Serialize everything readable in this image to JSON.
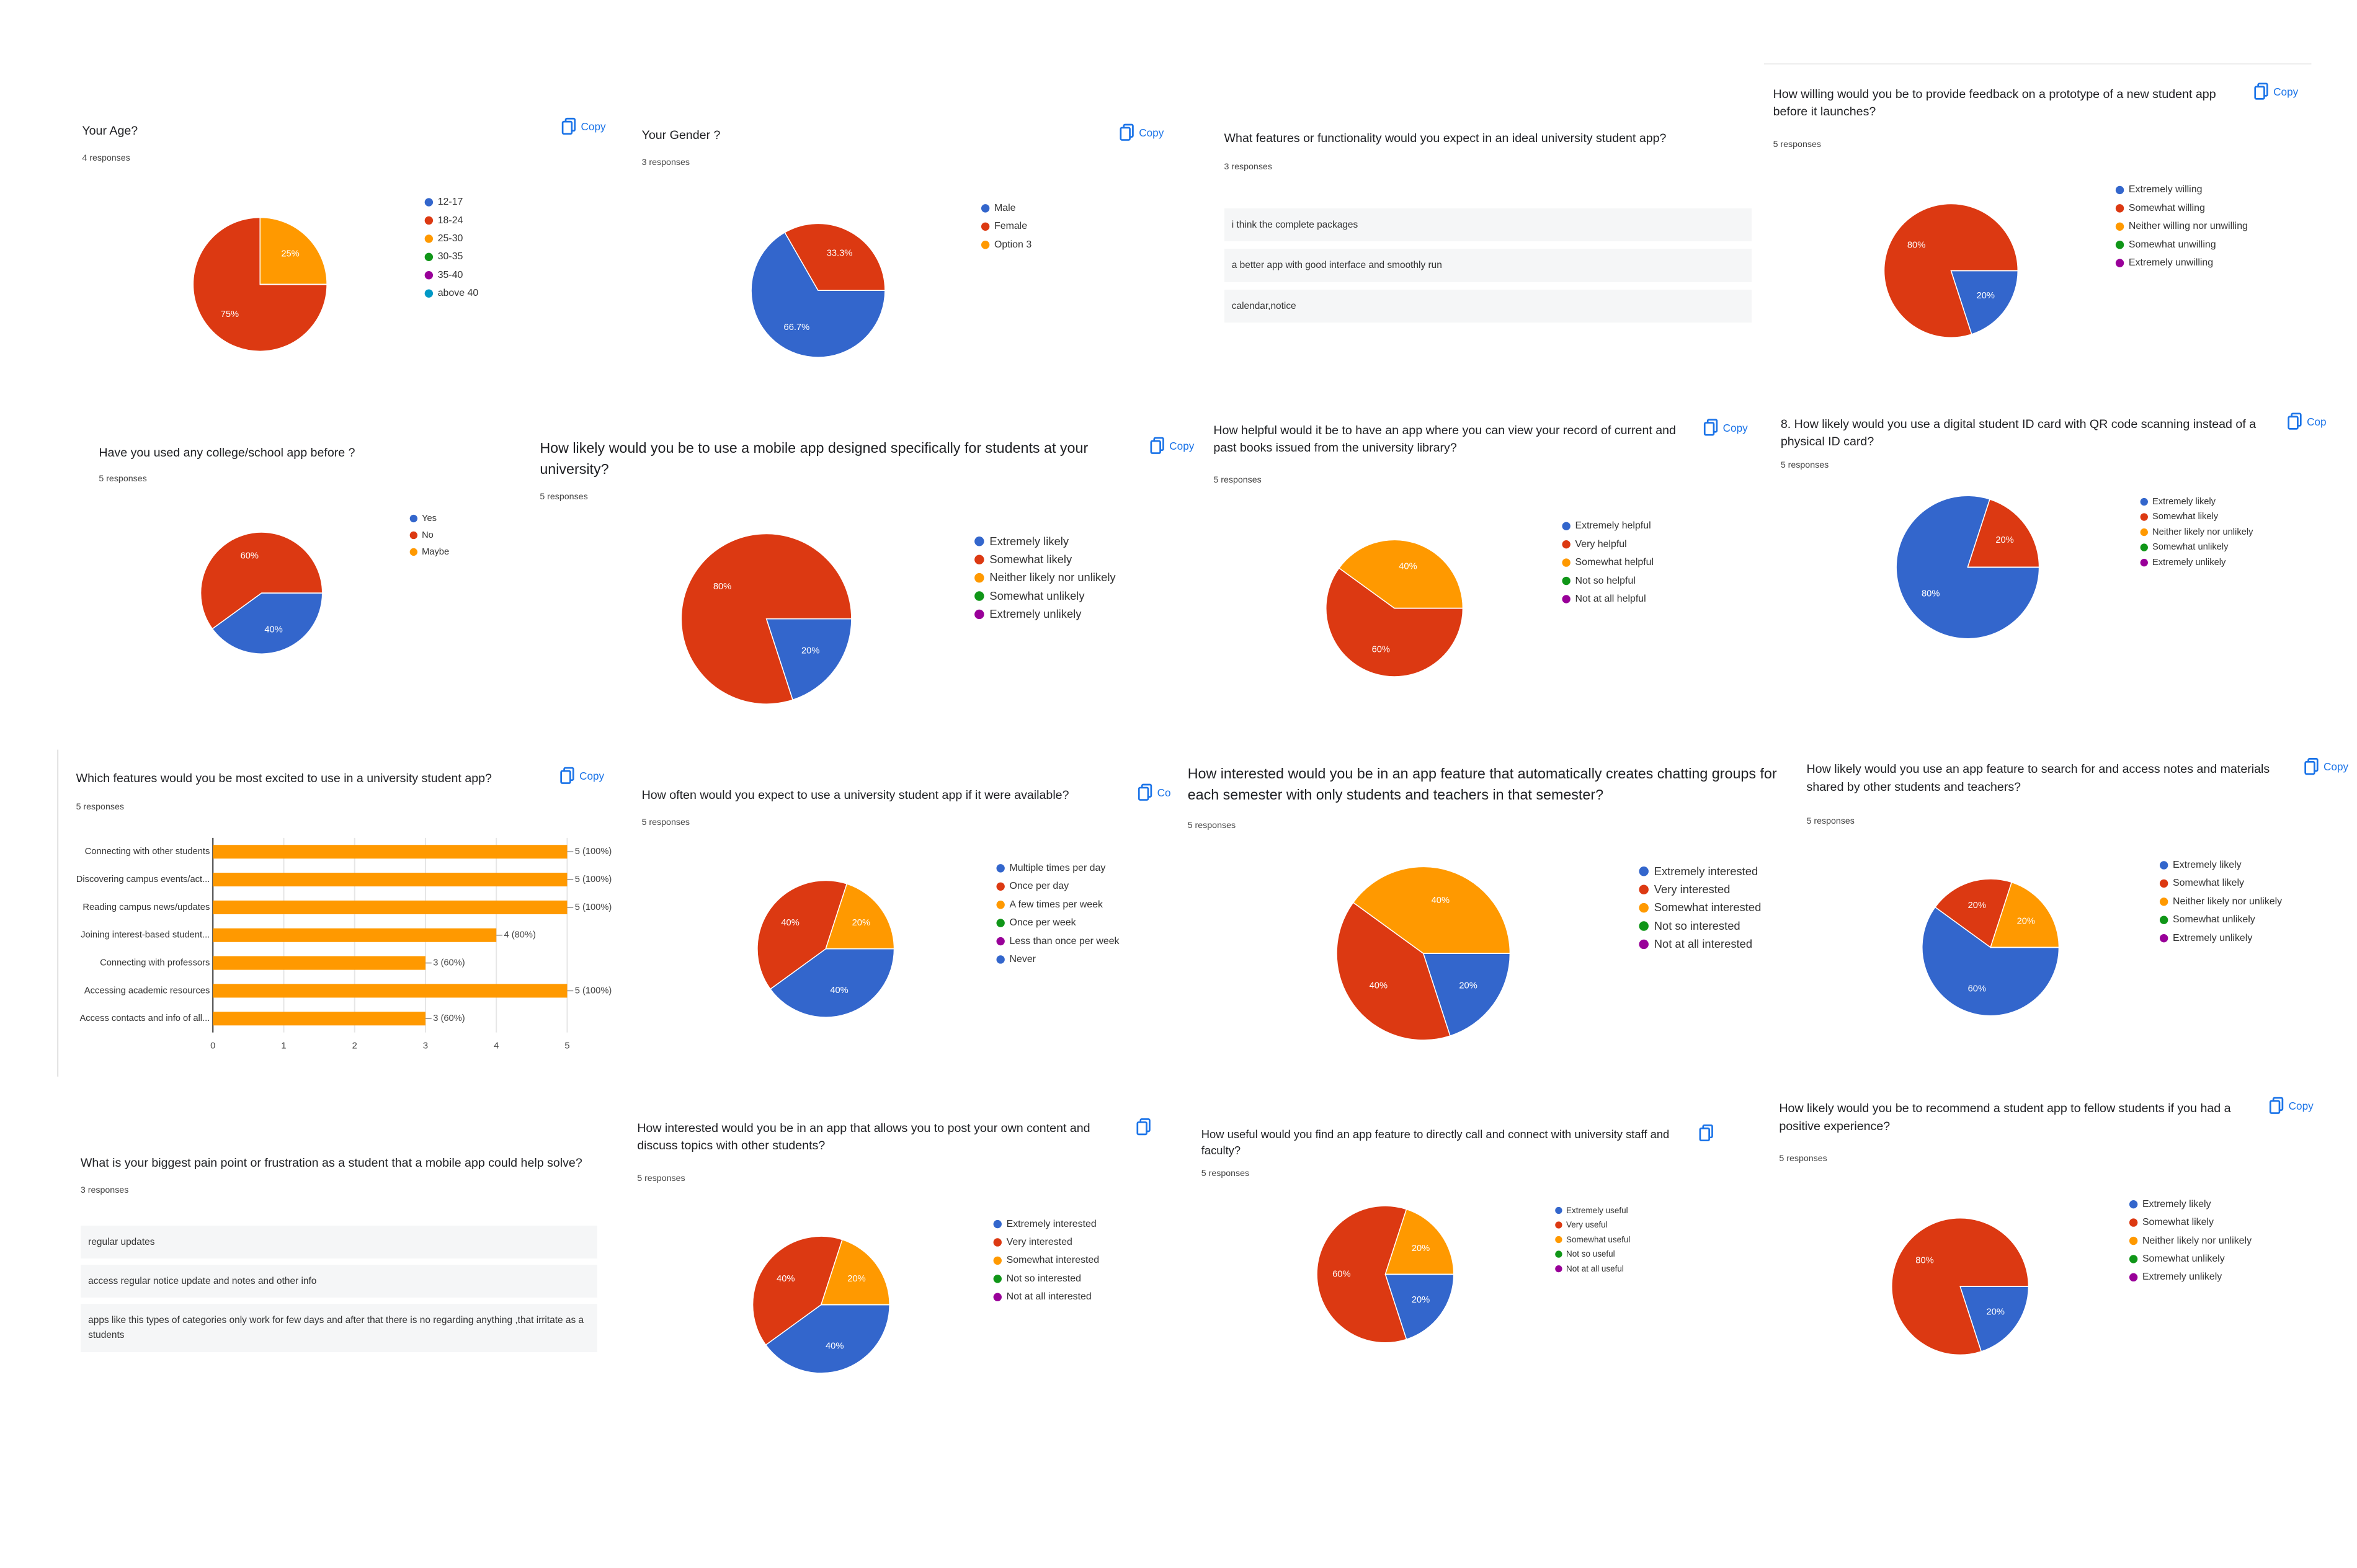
{
  "chart_data": [
    {
      "type": "pie",
      "title": "Your Age?",
      "subtitle": "4 responses",
      "copy": "Copy",
      "categories": [
        "12-17",
        "18-24",
        "25-30",
        "30-35",
        "35-40",
        "above 40"
      ],
      "colors": [
        "#3366cc",
        "#dc3912",
        "#ff9900",
        "#109618",
        "#990099",
        "#0099c6"
      ],
      "values": [
        0,
        75,
        25,
        0,
        0,
        0
      ],
      "value_labels": [
        null,
        "75%",
        "25%",
        null,
        null,
        null
      ]
    },
    {
      "type": "pie",
      "title": "Your Gender ?",
      "subtitle": "3 responses",
      "copy": "Copy",
      "categories": [
        "Male",
        "Female",
        "Option 3"
      ],
      "colors": [
        "#3366cc",
        "#dc3912",
        "#ff9900"
      ],
      "values": [
        66.7,
        33.3,
        0
      ],
      "value_labels": [
        "66.7%",
        "33.3%",
        null
      ]
    },
    {
      "type": "text",
      "title": "What features or functionality would you expect in an ideal university student app?",
      "subtitle": "3 responses",
      "answers": [
        "i think the complete packages",
        "a better app with good interface and smoothly run",
        "calendar,notice"
      ]
    },
    {
      "type": "pie",
      "title": "How willing would you be to provide feedback on a prototype of a new student app before it launches?",
      "subtitle": "5 responses",
      "copy": "Copy",
      "categories": [
        "Extremely willing",
        "Somewhat willing",
        "Neither willing nor unwilling",
        "Somewhat unwilling",
        "Extremely unwilling"
      ],
      "colors": [
        "#3366cc",
        "#dc3912",
        "#ff9900",
        "#109618",
        "#990099"
      ],
      "values": [
        20,
        80,
        0,
        0,
        0
      ],
      "value_labels": [
        "20%",
        "80%",
        null,
        null,
        null
      ]
    },
    {
      "type": "pie",
      "title": "Have you used any college/school app before ?",
      "subtitle": "5 responses",
      "categories": [
        "Yes",
        "No",
        "Maybe"
      ],
      "colors": [
        "#3366cc",
        "#dc3912",
        "#ff9900"
      ],
      "values": [
        40,
        60,
        0
      ],
      "value_labels": [
        "40%",
        "60%",
        null
      ]
    },
    {
      "type": "pie",
      "title": "How likely would you be to use a mobile app designed specifically for students at your university?",
      "subtitle": "5 responses",
      "copy": "Copy",
      "categories": [
        "Extremely likely",
        "Somewhat likely",
        "Neither likely nor unlikely",
        "Somewhat unlikely",
        "Extremely unlikely"
      ],
      "colors": [
        "#3366cc",
        "#dc3912",
        "#ff9900",
        "#109618",
        "#990099"
      ],
      "values": [
        20,
        80,
        0,
        0,
        0
      ],
      "value_labels": [
        "20%",
        "80%",
        null,
        null,
        null
      ]
    },
    {
      "type": "pie",
      "title": "How helpful would it be to have an app where you can view your record of current and past books issued from the university library?",
      "subtitle": "5 responses",
      "copy": "Copy",
      "categories": [
        "Extremely helpful",
        "Very helpful",
        "Somewhat helpful",
        "Not so helpful",
        "Not at all helpful"
      ],
      "colors": [
        "#3366cc",
        "#dc3912",
        "#ff9900",
        "#109618",
        "#990099"
      ],
      "values": [
        0,
        60,
        40,
        0,
        0
      ],
      "value_labels": [
        null,
        "60%",
        "40%",
        null,
        null
      ]
    },
    {
      "type": "pie",
      "title": "8. How likely would you use a digital student ID card with QR code scanning instead of a physical ID card?",
      "subtitle": "5 responses",
      "copy": "Cop",
      "categories": [
        "Extremely likely",
        "Somewhat likely",
        "Neither likely nor unlikely",
        "Somewhat unlikely",
        "Extremely unlikely"
      ],
      "colors": [
        "#3366cc",
        "#dc3912",
        "#ff9900",
        "#109618",
        "#990099"
      ],
      "values": [
        80,
        20,
        0,
        0,
        0
      ],
      "value_labels": [
        "80%",
        "20%",
        null,
        null,
        null
      ]
    },
    {
      "type": "bar",
      "title": "Which features would you be most excited to use in a university student app?",
      "subtitle": "5 responses",
      "copy": "Copy",
      "categories": [
        "Connecting with other students",
        "Discovering campus events/act...",
        "Reading campus news/updates",
        "Joining interest-based student...",
        "Connecting with professors",
        "Accessing academic resources",
        "Access contacts and info of all..."
      ],
      "values": [
        5,
        5,
        5,
        4,
        3,
        5,
        3
      ],
      "value_labels": [
        "5 (100%)",
        "5 (100%)",
        "5 (100%)",
        "4 (80%)",
        "3 (60%)",
        "5 (100%)",
        "3 (60%)"
      ],
      "color": "#ff9900",
      "xlim": [
        0,
        5
      ],
      "xticks": [
        0,
        1,
        2,
        3,
        4,
        5
      ]
    },
    {
      "type": "pie",
      "title": "How often would you expect to use a university student app if it were available?",
      "subtitle": "5 responses",
      "copy": "Co",
      "categories": [
        "Multiple times per day",
        "Once per day",
        "A few times per week",
        "Once per week",
        "Less than once per week",
        "Never"
      ],
      "colors": [
        "#3366cc",
        "#dc3912",
        "#ff9900",
        "#109618",
        "#990099",
        "#3366cc"
      ],
      "values": [
        40,
        40,
        20,
        0,
        0,
        0
      ],
      "value_labels": [
        "40%",
        "40%",
        "20%",
        null,
        null,
        null
      ]
    },
    {
      "type": "pie",
      "title": "How interested would you be in an app feature that automatically creates chatting groups for each semester with only students and teachers in that semester?",
      "subtitle": "5 responses",
      "categories": [
        "Extremely interested",
        "Very interested",
        "Somewhat interested",
        "Not so interested",
        "Not at all interested"
      ],
      "colors": [
        "#3366cc",
        "#dc3912",
        "#ff9900",
        "#109618",
        "#990099"
      ],
      "values": [
        20,
        40,
        40,
        0,
        0
      ],
      "value_labels": [
        "20%",
        "40%",
        "40%",
        null,
        null
      ]
    },
    {
      "type": "pie",
      "title": "How likely would you use an app feature to search for and access notes and materials shared by other students and teachers?",
      "subtitle": "5 responses",
      "copy": "Copy",
      "categories": [
        "Extremely likely",
        "Somewhat likely",
        "Neither likely nor unlikely",
        "Somewhat unlikely",
        "Extremely unlikely"
      ],
      "colors": [
        "#3366cc",
        "#dc3912",
        "#ff9900",
        "#109618",
        "#990099"
      ],
      "values": [
        60,
        20,
        20,
        0,
        0
      ],
      "value_labels": [
        "60%",
        "20%",
        "20%",
        null,
        null
      ]
    },
    {
      "type": "text",
      "title": "What is your biggest pain point or frustration as a student that a mobile app could help solve?",
      "subtitle": "3 responses",
      "answers": [
        "regular updates",
        "access regular notice update and notes and other info",
        "apps like this types of categories only work for few days and after that there is no regarding anything ,that irritate as a students"
      ]
    },
    {
      "type": "pie",
      "title": "How interested would you be in an app that allows you to post your own content and discuss topics with other students?",
      "subtitle": "5 responses",
      "categories": [
        "Extremely interested",
        "Very interested",
        "Somewhat interested",
        "Not so interested",
        "Not at all interested"
      ],
      "colors": [
        "#3366cc",
        "#dc3912",
        "#ff9900",
        "#109618",
        "#990099"
      ],
      "values": [
        40,
        40,
        20,
        0,
        0
      ],
      "value_labels": [
        "40%",
        "40%",
        "20%",
        null,
        null
      ]
    },
    {
      "type": "pie",
      "title": "How useful would you find an app feature to directly call and connect with university staff and faculty?",
      "subtitle": "5 responses",
      "categories": [
        "Extremely useful",
        "Very useful",
        "Somewhat useful",
        "Not so useful",
        "Not at all useful"
      ],
      "colors": [
        "#3366cc",
        "#dc3912",
        "#ff9900",
        "#109618",
        "#990099"
      ],
      "values": [
        20,
        60,
        20,
        0,
        0
      ],
      "value_labels": [
        "20%",
        "60%",
        "20%",
        null,
        null
      ]
    },
    {
      "type": "pie",
      "title": "How likely would you be to recommend a student app to fellow students if you had a positive experience?",
      "subtitle": "5 responses",
      "copy": "Copy",
      "categories": [
        "Extremely likely",
        "Somewhat likely",
        "Neither likely nor unlikely",
        "Somewhat unlikely",
        "Extremely unlikely"
      ],
      "colors": [
        "#3366cc",
        "#dc3912",
        "#ff9900",
        "#109618",
        "#990099"
      ],
      "values": [
        20,
        80,
        0,
        0,
        0
      ],
      "value_labels": [
        "20%",
        "80%",
        null,
        null,
        null
      ]
    }
  ]
}
